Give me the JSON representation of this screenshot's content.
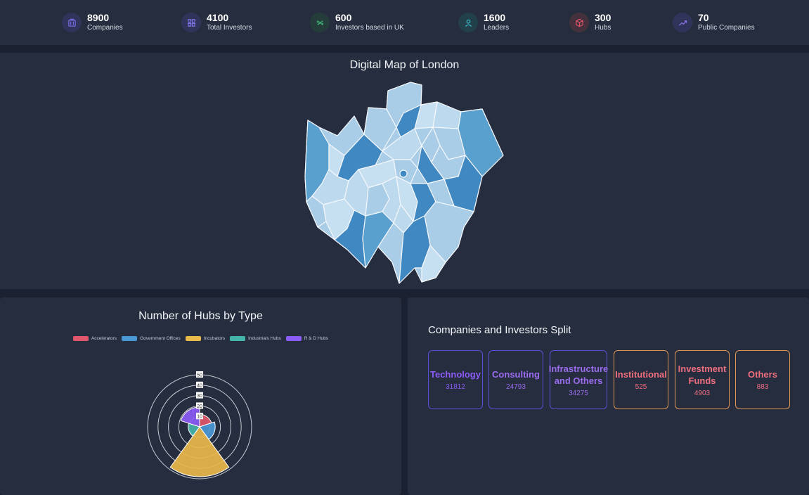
{
  "stats": [
    {
      "value": "8900",
      "label": "Companies",
      "icon": "building-icon",
      "color": "#7c6df0"
    },
    {
      "value": "4100",
      "label": "Total Investors",
      "icon": "grid-icon",
      "color": "#8a7cf5"
    },
    {
      "value": "600",
      "label": "Investors based in UK",
      "icon": "sync-icon",
      "color": "#3fb878"
    },
    {
      "value": "1600",
      "label": "Leaders",
      "icon": "user-icon",
      "color": "#3ec6d6"
    },
    {
      "value": "300",
      "label": "Hubs",
      "icon": "cube-icon",
      "color": "#e0566a"
    },
    {
      "value": "70",
      "label": "Public Companies",
      "icon": "trend-icon",
      "color": "#8f72f2"
    }
  ],
  "map": {
    "title": "Digital Map of London"
  },
  "hubs": {
    "title": "Number of Hubs by Type"
  },
  "chart_data": {
    "type": "polar-area",
    "title": "Number of Hubs by Type",
    "categories": [
      "Accelerators",
      "Government Offices",
      "Incubators",
      "Industrials Hubs",
      "R & D Hubs"
    ],
    "values": [
      12,
      15,
      48,
      11,
      19
    ],
    "colors": [
      "#e0566a",
      "#4a98d6",
      "#e9b94a",
      "#45b4a8",
      "#8b5cf6"
    ],
    "rlim": [
      0,
      50
    ],
    "ticks": [
      10,
      20,
      30,
      40,
      50
    ],
    "legend": "top"
  },
  "split": {
    "title": "Companies and Investors Split",
    "cards": [
      {
        "name": "Technology",
        "value": "31812",
        "color": "#8b5cf6",
        "border": "#5b4fd6"
      },
      {
        "name": "Consulting",
        "value": "24793",
        "color": "#9b6cf0",
        "border": "#5b4fd6"
      },
      {
        "name": "Infrastructure and Others",
        "value": "34275",
        "color": "#9b6cf0",
        "border": "#5b4fd6"
      },
      {
        "name": "Institutional",
        "value": "525",
        "color": "#ef6f7e",
        "border": "#e09552"
      },
      {
        "name": "Investment Funds",
        "value": "4903",
        "color": "#ef6f7e",
        "border": "#e09552"
      },
      {
        "name": "Others",
        "value": "883",
        "color": "#ef6f7e",
        "border": "#e09552"
      }
    ]
  }
}
